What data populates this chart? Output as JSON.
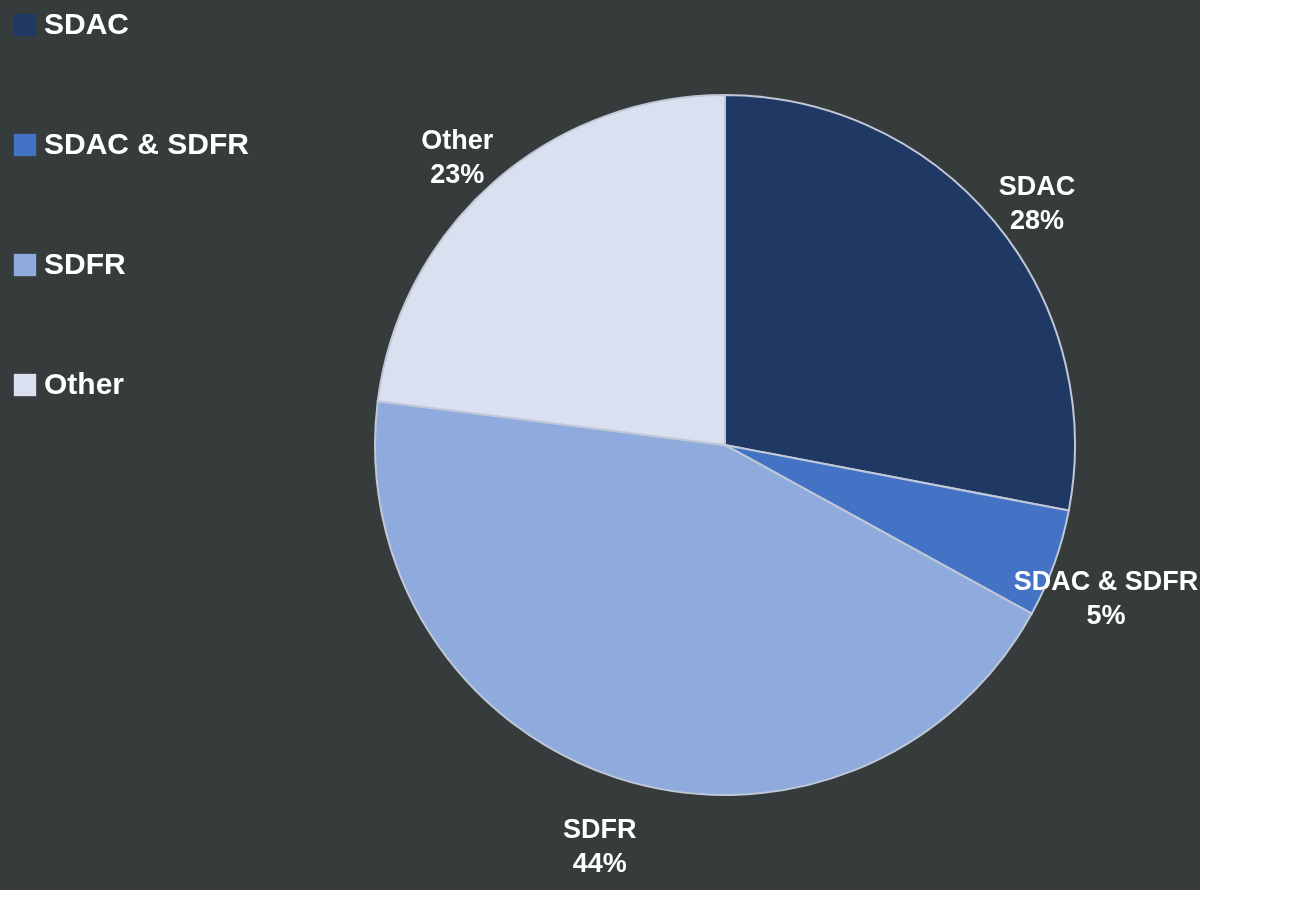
{
  "chart_data": {
    "type": "pie",
    "categories": [
      "SDAC",
      "SDAC & SDFR",
      "SDFR",
      "Other"
    ],
    "values": [
      28,
      5,
      44,
      23
    ],
    "value_labels": [
      "28%",
      "5%",
      "44%",
      "23%"
    ],
    "colors": [
      "#1f3864",
      "#4472c4",
      "#8faadc",
      "#dae0f0"
    ],
    "legend": "left"
  }
}
